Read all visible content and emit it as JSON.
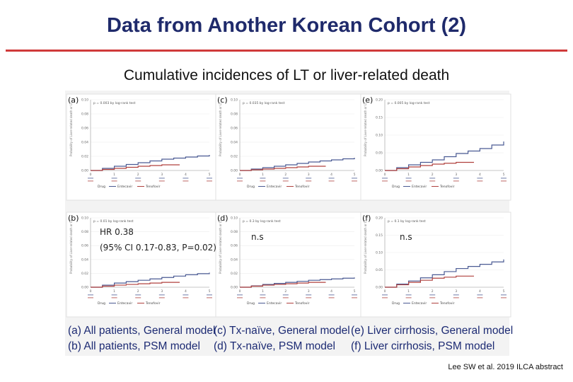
{
  "slide": {
    "title": "Data from Another Korean Cohort (2)",
    "subtitle": "Cumulative incidences of LT or liver-related death",
    "citation": "Lee SW et al. 2019 ILCA abstract"
  },
  "captions": {
    "a": "(a) All patients, General model",
    "c": "(c) Tx-naïve, General model",
    "e": "(e) Liver cirrhosis, General model",
    "b": "(b) All patients, PSM model",
    "d": "(d) Tx-naïve, PSM model",
    "f": "(f) Liver cirrhosis, PSM model"
  },
  "annotations": {
    "hr": "HR 0.38",
    "ci": "(95% CI 0.17-0.83, P=0.02)",
    "ns_d": "n.s",
    "ns_f": "n.s"
  },
  "colors": {
    "entecavir": "#4a5a93",
    "tenofovir": "#b0413e"
  },
  "chart_data": [
    {
      "type": "line",
      "panel": "a",
      "p_text": "p = 0.003 by log-rank test",
      "x": [
        0,
        1,
        2,
        3,
        4,
        5
      ],
      "xticks": [
        "0",
        "1",
        "2",
        "3",
        "4",
        "5"
      ],
      "ylim": [
        0,
        0.1
      ],
      "yticks": [
        "0.00",
        "0.02",
        "0.04",
        "0.06",
        "0.08",
        "0.10"
      ],
      "legend": [
        "Drug",
        "Entecavir",
        "Tenofovir"
      ],
      "series": [
        {
          "name": "Entecavir",
          "values": [
            0.0,
            0.006,
            0.011,
            0.016,
            0.019,
            0.022
          ]
        },
        {
          "name": "Tenofovir",
          "values": [
            0.0,
            0.003,
            0.006,
            0.008,
            0.009,
            0.009
          ]
        }
      ]
    },
    {
      "type": "line",
      "panel": "c",
      "p_text": "p = 0.035 by log-rank test",
      "x": [
        0,
        1,
        2,
        3,
        4,
        5
      ],
      "xticks": [
        "0",
        "1",
        "2",
        "3",
        "4",
        "5"
      ],
      "ylim": [
        0,
        0.1
      ],
      "yticks": [
        "0.00",
        "0.02",
        "0.04",
        "0.06",
        "0.08",
        "0.10"
      ],
      "legend": [
        "Drug",
        "Entecavir",
        "Tenofovir"
      ],
      "series": [
        {
          "name": "Entecavir",
          "values": [
            0.0,
            0.004,
            0.008,
            0.012,
            0.015,
            0.018
          ]
        },
        {
          "name": "Tenofovir",
          "values": [
            0.0,
            0.002,
            0.004,
            0.006,
            0.007,
            0.007
          ]
        }
      ]
    },
    {
      "type": "line",
      "panel": "e",
      "p_text": "p = 0.005 by log-rank test",
      "x": [
        0,
        1,
        2,
        3,
        4,
        5
      ],
      "xticks": [
        "0",
        "1",
        "2",
        "3",
        "4",
        "5"
      ],
      "ylim": [
        0,
        0.2
      ],
      "yticks": [
        "0.00",
        "0.05",
        "0.10",
        "0.15",
        "0.20"
      ],
      "legend": [
        "Drug",
        "Entecavir",
        "Tenofovir"
      ],
      "series": [
        {
          "name": "Entecavir",
          "values": [
            0.0,
            0.016,
            0.03,
            0.048,
            0.062,
            0.082
          ]
        },
        {
          "name": "Tenofovir",
          "values": [
            0.0,
            0.01,
            0.018,
            0.023,
            0.026,
            0.026
          ]
        }
      ]
    },
    {
      "type": "line",
      "panel": "b",
      "p_text": "p = 0.01 by log-rank test",
      "x": [
        0,
        1,
        2,
        3,
        4,
        5
      ],
      "xticks": [
        "0",
        "1",
        "2",
        "3",
        "4",
        "5"
      ],
      "ylim": [
        0,
        0.1
      ],
      "yticks": [
        "0.00",
        "0.02",
        "0.04",
        "0.06",
        "0.08",
        "0.10"
      ],
      "legend": [
        "Drug",
        "Entecavir",
        "Tenofovir"
      ],
      "series": [
        {
          "name": "Entecavir",
          "values": [
            0.0,
            0.006,
            0.01,
            0.014,
            0.018,
            0.021
          ]
        },
        {
          "name": "Tenofovir",
          "values": [
            0.0,
            0.003,
            0.005,
            0.007,
            0.008,
            0.008
          ]
        }
      ]
    },
    {
      "type": "line",
      "panel": "d",
      "p_text": "p = 0.3 by log-rank test",
      "x": [
        0,
        1,
        2,
        3,
        4,
        5
      ],
      "xticks": [
        "0",
        "1",
        "2",
        "3",
        "4",
        "5"
      ],
      "ylim": [
        0,
        0.1
      ],
      "yticks": [
        "0.00",
        "0.02",
        "0.04",
        "0.06",
        "0.08",
        "0.10"
      ],
      "legend": [
        "Drug",
        "Entecavir",
        "Tenofovir"
      ],
      "series": [
        {
          "name": "Entecavir",
          "values": [
            0.0,
            0.004,
            0.007,
            0.01,
            0.012,
            0.014
          ]
        },
        {
          "name": "Tenofovir",
          "values": [
            0.0,
            0.003,
            0.005,
            0.007,
            0.008,
            0.008
          ]
        }
      ]
    },
    {
      "type": "line",
      "panel": "f",
      "p_text": "p = 0.1 by log-rank test",
      "x": [
        0,
        1,
        2,
        3,
        4,
        5
      ],
      "xticks": [
        "0",
        "1",
        "2",
        "3",
        "4",
        "5"
      ],
      "ylim": [
        0,
        0.2
      ],
      "yticks": [
        "0.00",
        "0.05",
        "0.10",
        "0.15",
        "0.20"
      ],
      "legend": [
        "Drug",
        "Entecavir",
        "Tenofovir"
      ],
      "series": [
        {
          "name": "Entecavir",
          "values": [
            0.0,
            0.018,
            0.036,
            0.054,
            0.066,
            0.08
          ]
        },
        {
          "name": "Tenofovir",
          "values": [
            0.0,
            0.014,
            0.026,
            0.032,
            0.036,
            0.036
          ]
        }
      ]
    }
  ]
}
